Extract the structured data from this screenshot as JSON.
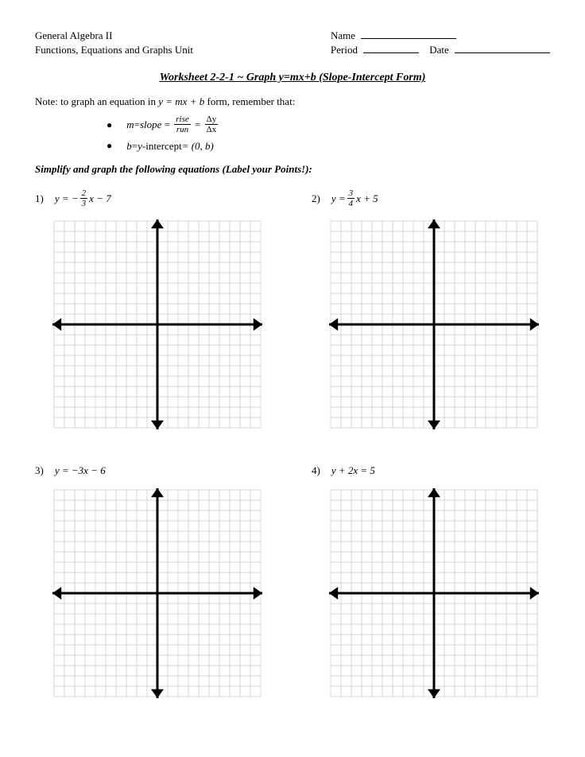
{
  "header": {
    "course": "General Algebra II",
    "unit": "Functions, Equations and Graphs Unit",
    "name_label": "Name",
    "period_label": "Period",
    "date_label": "Date"
  },
  "title": "Worksheet 2-2-1 ~ Graph y=mx+b (Slope-Intercept Form)",
  "note_prefix": "Note: to graph an equation in ",
  "note_formula": "y = mx + b",
  "note_suffix": "  form, remember that:",
  "bullet1": {
    "m": "m",
    "eq": " = ",
    "slope": "slope",
    "rise": "rise",
    "run": "run",
    "dy": "Δy",
    "dx": "Δx"
  },
  "bullet2": {
    "b": "b",
    "eq": " = ",
    "yint": "y-",
    "intercept": "intercept",
    "pt": " = (0, b)"
  },
  "instruction": "Simplify and graph the following equations (Label your Points!):",
  "problems": [
    {
      "num": "1)",
      "eq_prefix": "y = −",
      "frac_num": "2",
      "frac_den": "3",
      "eq_suffix": " x − 7"
    },
    {
      "num": "2)",
      "eq_prefix": "y = ",
      "frac_num": "3",
      "frac_den": "4",
      "eq_suffix": " x + 5"
    },
    {
      "num": "3)",
      "eq_plain": "y = −3x − 6"
    },
    {
      "num": "4)",
      "eq_plain": "y + 2x = 5"
    }
  ],
  "graph": {
    "size": 260,
    "cells": 20,
    "grid_color": "#b0b0b0",
    "axis_color": "#000000",
    "axis_width": 3,
    "grid_width": 0.5,
    "arrow_size": 8,
    "background": "#ffffff"
  }
}
